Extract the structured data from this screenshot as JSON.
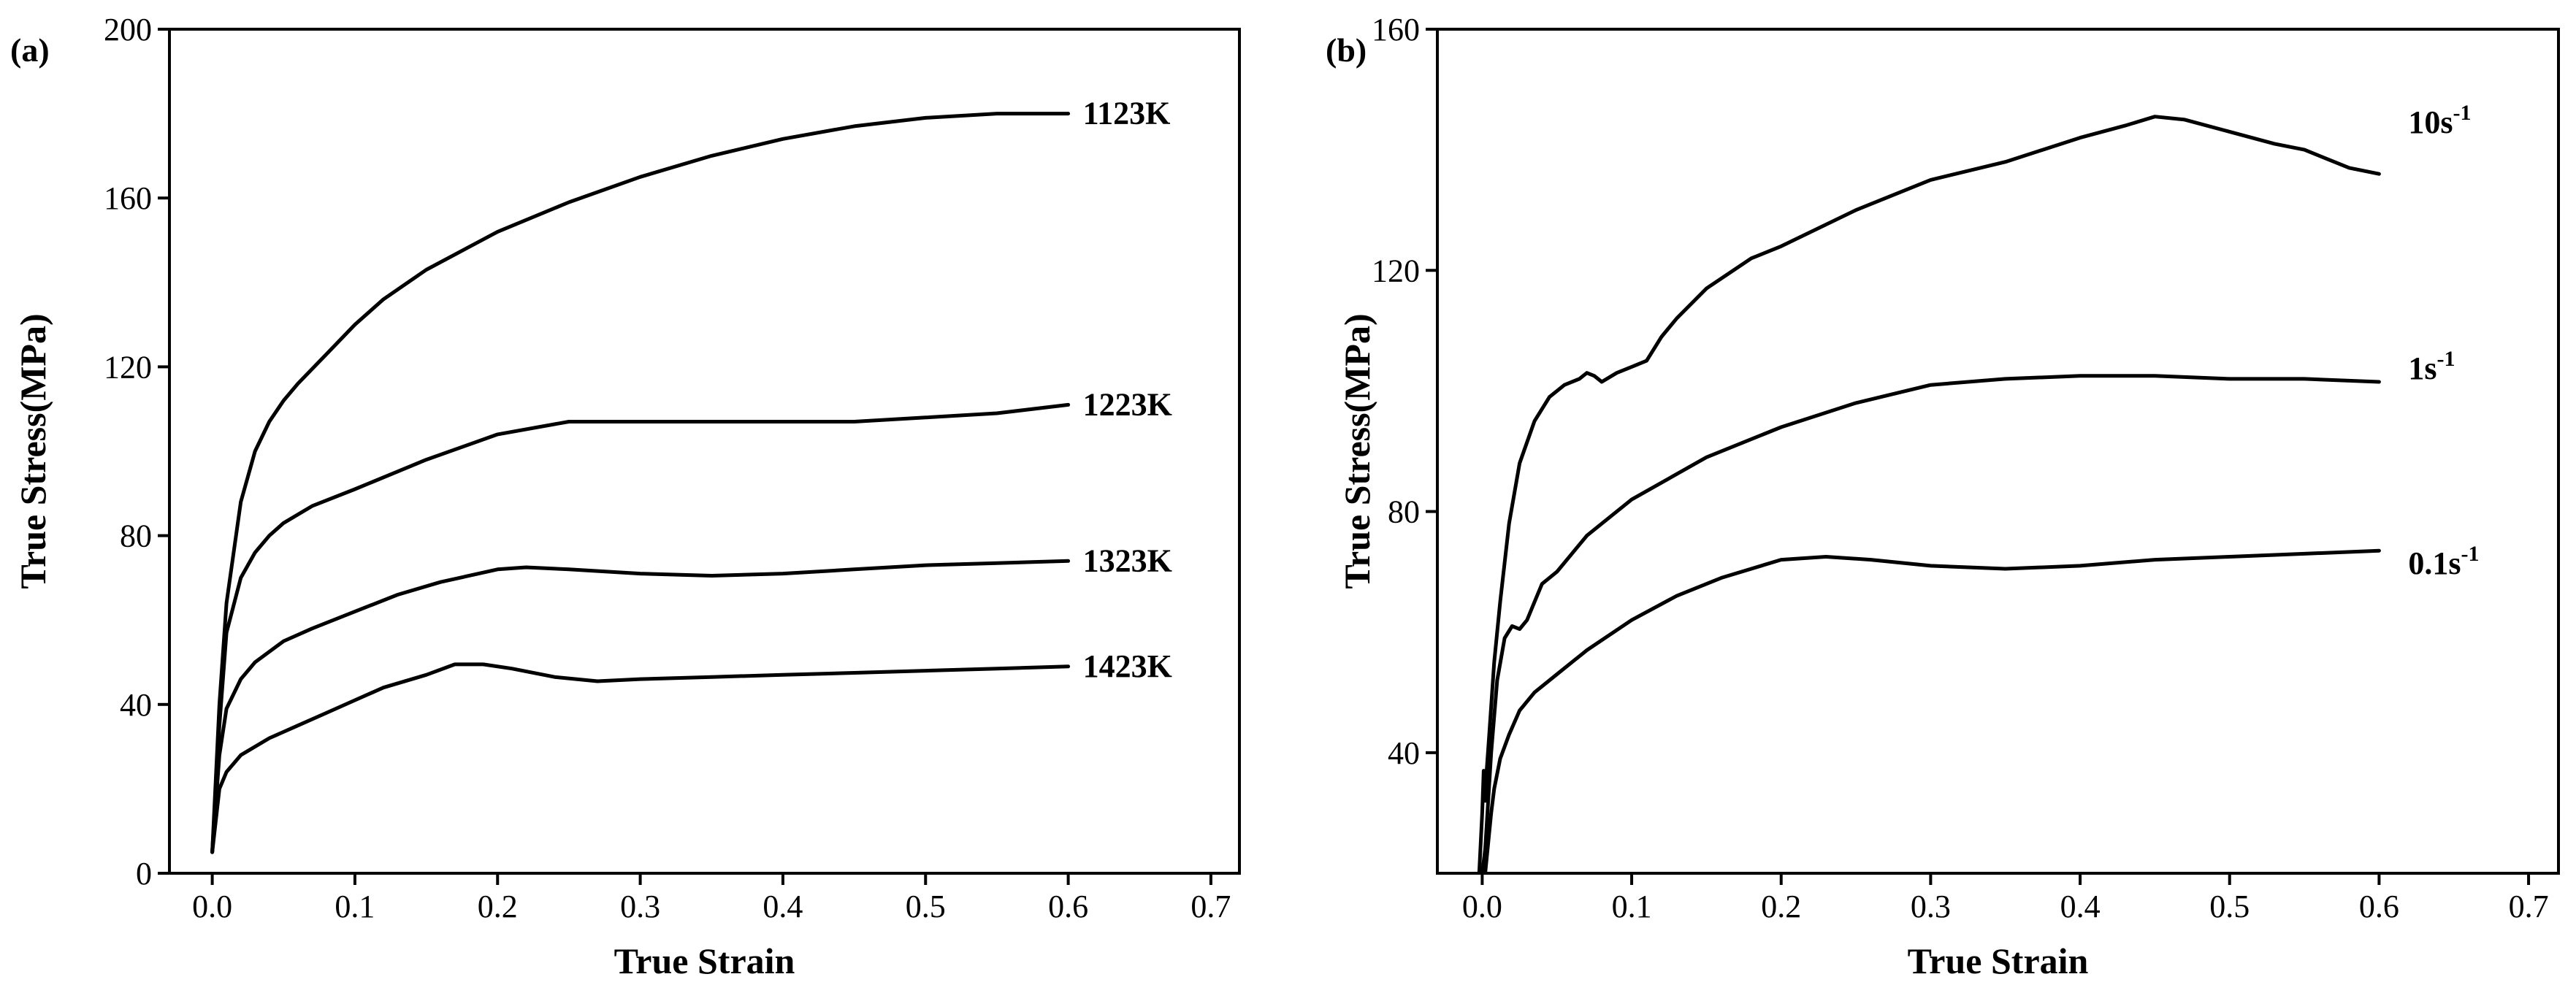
{
  "chart_data": [
    {
      "panel_label": "(a)",
      "type": "line",
      "xlabel": "True Strain",
      "ylabel": "True Stress(MPa)",
      "xlim": [
        -0.03,
        0.72
      ],
      "ylim": [
        0,
        200
      ],
      "xticks": [
        0.0,
        0.1,
        0.2,
        0.3,
        0.4,
        0.5,
        0.6,
        0.7
      ],
      "xtick_labels": [
        "0.0",
        "0.1",
        "0.2",
        "0.3",
        "0.4",
        "0.5",
        "0.6",
        "0.7"
      ],
      "yticks": [
        0,
        40,
        80,
        120,
        160,
        200
      ],
      "ytick_labels": [
        "0",
        "40",
        "80",
        "120",
        "160",
        "200"
      ],
      "series": [
        {
          "name": "1123K",
          "x": [
            0,
            0.005,
            0.01,
            0.02,
            0.03,
            0.04,
            0.05,
            0.06,
            0.08,
            0.1,
            0.12,
            0.15,
            0.2,
            0.25,
            0.3,
            0.35,
            0.4,
            0.45,
            0.5,
            0.55,
            0.6
          ],
          "y": [
            5,
            40,
            64,
            88,
            100,
            107,
            112,
            116,
            123,
            130,
            136,
            143,
            152,
            159,
            165,
            170,
            174,
            177,
            179,
            180,
            180
          ]
        },
        {
          "name": "1223K",
          "x": [
            0,
            0.005,
            0.01,
            0.02,
            0.03,
            0.04,
            0.05,
            0.07,
            0.1,
            0.15,
            0.2,
            0.25,
            0.3,
            0.35,
            0.4,
            0.45,
            0.5,
            0.55,
            0.6
          ],
          "y": [
            5,
            35,
            57,
            70,
            76,
            80,
            83,
            87,
            91,
            98,
            104,
            107,
            107,
            107,
            107,
            107,
            108,
            109,
            111
          ]
        },
        {
          "name": "1323K",
          "x": [
            0,
            0.005,
            0.01,
            0.02,
            0.03,
            0.05,
            0.07,
            0.1,
            0.13,
            0.16,
            0.2,
            0.22,
            0.25,
            0.3,
            0.35,
            0.4,
            0.45,
            0.5,
            0.55,
            0.6
          ],
          "y": [
            5,
            28,
            39,
            46,
            50,
            55,
            58,
            62,
            66,
            69,
            72,
            72.5,
            72,
            71,
            70.5,
            71,
            72,
            73,
            73.5,
            74
          ]
        },
        {
          "name": "1423K",
          "x": [
            0,
            0.005,
            0.01,
            0.02,
            0.04,
            0.06,
            0.08,
            0.1,
            0.12,
            0.15,
            0.17,
            0.19,
            0.21,
            0.24,
            0.27,
            0.3,
            0.35,
            0.4,
            0.45,
            0.5,
            0.55,
            0.6
          ],
          "y": [
            5,
            20,
            24,
            28,
            32,
            35,
            38,
            41,
            44,
            47,
            49.5,
            49.5,
            48.5,
            46.5,
            45.5,
            46,
            46.5,
            47,
            47.5,
            48,
            48.5,
            49
          ]
        }
      ]
    },
    {
      "panel_label": "(b)",
      "type": "line",
      "xlabel": "True Strain",
      "ylabel": "True Stress(MPa)",
      "xlim": [
        -0.03,
        0.72
      ],
      "ylim": [
        20,
        160
      ],
      "xticks": [
        0.0,
        0.1,
        0.2,
        0.3,
        0.4,
        0.5,
        0.6,
        0.7
      ],
      "xtick_labels": [
        "0.0",
        "0.1",
        "0.2",
        "0.3",
        "0.4",
        "0.5",
        "0.6",
        "0.7"
      ],
      "yticks": [
        40,
        80,
        120,
        160
      ],
      "ytick_labels": [
        "40",
        "80",
        "120",
        "160"
      ],
      "series": [
        {
          "name": "10s-1",
          "label_base": "10s",
          "label_sup": "-1",
          "x": [
            -0.002,
            0.0,
            0.001,
            0.002,
            0.003,
            0.005,
            0.008,
            0.012,
            0.018,
            0.025,
            0.035,
            0.045,
            0.055,
            0.065,
            0.07,
            0.075,
            0.08,
            0.09,
            0.1,
            0.11,
            0.12,
            0.13,
            0.15,
            0.18,
            0.2,
            0.25,
            0.3,
            0.35,
            0.4,
            0.43,
            0.45,
            0.47,
            0.5,
            0.53,
            0.55,
            0.58,
            0.6
          ],
          "y": [
            20,
            30,
            37,
            32,
            37,
            44,
            55,
            65,
            78,
            88,
            95,
            99,
            101,
            102,
            103,
            102.5,
            101.5,
            103,
            104,
            105,
            109,
            112,
            117,
            122,
            124,
            130,
            135,
            138,
            142,
            144,
            145.5,
            145,
            143,
            141,
            140,
            137,
            136
          ]
        },
        {
          "name": "1s-1",
          "label_base": "1s",
          "label_sup": "-1",
          "x": [
            0.0,
            0.002,
            0.004,
            0.006,
            0.01,
            0.015,
            0.02,
            0.025,
            0.03,
            0.035,
            0.04,
            0.05,
            0.07,
            0.1,
            0.15,
            0.2,
            0.25,
            0.3,
            0.35,
            0.4,
            0.45,
            0.5,
            0.55,
            0.6
          ],
          "y": [
            20,
            24,
            32,
            40,
            52,
            59,
            61,
            60.5,
            62,
            65,
            68,
            70,
            76,
            82,
            89,
            94,
            98,
            101,
            102,
            102.5,
            102.5,
            102,
            102,
            101.5
          ]
        },
        {
          "name": "0.1s-1",
          "label_base": "0.1s",
          "label_sup": "-1",
          "x": [
            0.002,
            0.004,
            0.006,
            0.008,
            0.012,
            0.018,
            0.025,
            0.035,
            0.05,
            0.07,
            0.1,
            0.13,
            0.16,
            0.2,
            0.23,
            0.26,
            0.3,
            0.35,
            0.4,
            0.45,
            0.5,
            0.55,
            0.6
          ],
          "y": [
            20,
            25,
            30,
            34,
            39,
            43,
            47,
            50,
            53,
            57,
            62,
            66,
            69,
            72,
            72.5,
            72,
            71,
            70.5,
            71,
            72,
            72.5,
            73,
            73.5
          ]
        }
      ]
    }
  ]
}
